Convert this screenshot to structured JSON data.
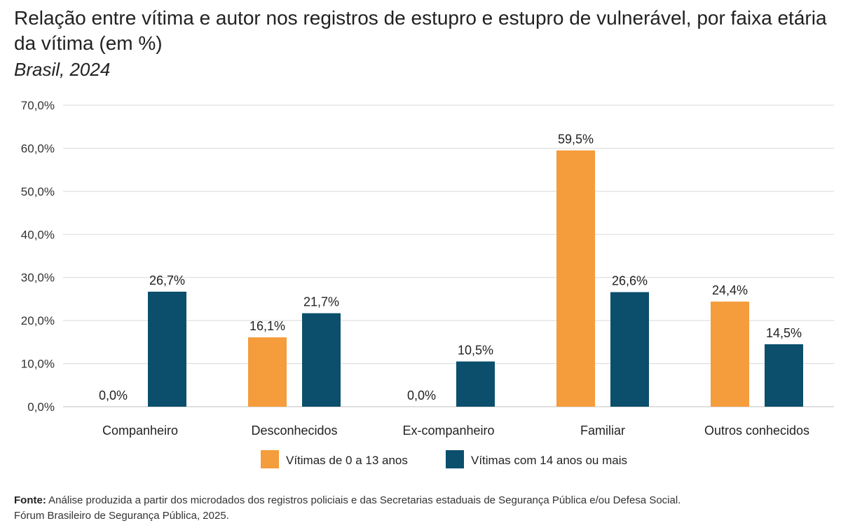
{
  "title": "Relação entre vítima e autor nos registros de estupro e estupro de vulnerável, por faixa etária da vítima (em %)",
  "subtitle": "Brasil, 2024",
  "source": {
    "label": "Fonte:",
    "text": "Análise produzida a partir dos microdados dos registros policiais e das Secretarias estaduais de Segurança Pública e/ou Defesa Social.",
    "line2": "Fórum Brasileiro de Segurança Pública, 2025."
  },
  "colors": {
    "series1": "#F59C3C",
    "series2": "#0B4F6C",
    "grid": "#d9d9d9"
  },
  "chart_data": {
    "type": "bar",
    "categories": [
      "Companheiro",
      "Desconhecidos",
      "Ex-companheiro",
      "Familiar",
      "Outros conhecidos"
    ],
    "series": [
      {
        "name": "Vítimas de 0 a 13 anos",
        "values": [
          0.0,
          16.1,
          0.0,
          59.5,
          24.4
        ],
        "labels": [
          "0,0%",
          "16,1%",
          "0,0%",
          "59,5%",
          "24,4%"
        ]
      },
      {
        "name": "Vítimas com 14 anos ou mais",
        "values": [
          26.7,
          21.7,
          10.5,
          26.6,
          14.5
        ],
        "labels": [
          "26,7%",
          "21,7%",
          "10,5%",
          "26,6%",
          "14,5%"
        ]
      }
    ],
    "ylim": [
      0,
      70
    ],
    "yticks": [
      "0,0%",
      "10,0%",
      "20,0%",
      "30,0%",
      "40,0%",
      "50,0%",
      "60,0%",
      "70,0%"
    ],
    "grid": true,
    "legend": "bottom"
  }
}
